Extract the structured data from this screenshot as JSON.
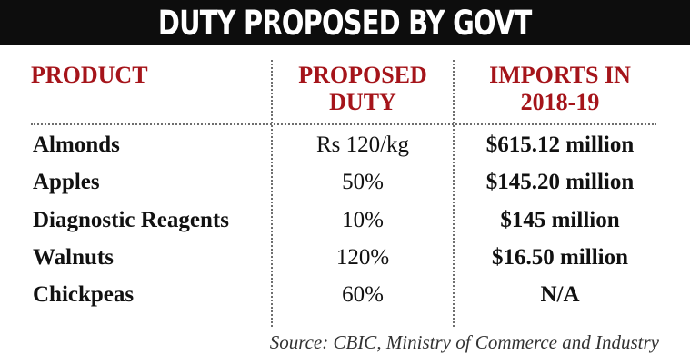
{
  "title": "DUTY PROPOSED BY GOVT",
  "chart_data": {
    "type": "table",
    "title": "DUTY PROPOSED BY GOVT",
    "columns": [
      "PRODUCT",
      "PROPOSED DUTY",
      "IMPORTS IN 2018-19"
    ],
    "header_lines": {
      "product": [
        "PRODUCT"
      ],
      "duty": [
        "PROPOSED",
        "DUTY"
      ],
      "imports": [
        "IMPORTS IN",
        "2018-19"
      ]
    },
    "rows": [
      {
        "product": "Almonds",
        "duty": "Rs 120/kg",
        "imports": "$615.12 million"
      },
      {
        "product": "Apples",
        "duty": "50%",
        "imports": "$145.20 million"
      },
      {
        "product": "Diagnostic Reagents",
        "duty": "10%",
        "imports": "$145 million"
      },
      {
        "product": "Walnuts",
        "duty": "120%",
        "imports": "$16.50 million"
      },
      {
        "product": "Chickpeas",
        "duty": "60%",
        "imports": "N/A"
      }
    ],
    "source": "Source: CBIC, Ministry of Commerce and Industry"
  },
  "colors": {
    "title_bg": "#0d0d0d",
    "title_text": "#ffffff",
    "header_text": "#a5141a",
    "body_text": "#111111"
  }
}
